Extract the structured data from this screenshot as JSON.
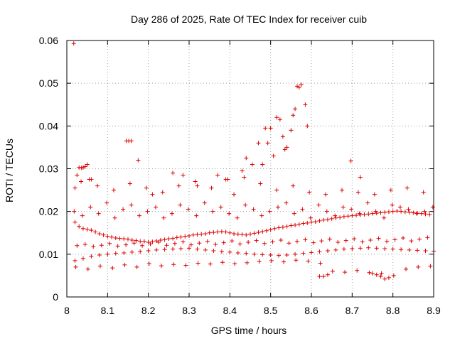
{
  "chart_data": {
    "type": "scatter",
    "title": "Day 286 of 2025, Rate Of TEC Index for receiver cuib",
    "xlabel": "GPS time / hours",
    "ylabel": "ROTI / TECUs",
    "xlim": [
      8.0,
      8.9
    ],
    "ylim": [
      0.0,
      0.06
    ],
    "x_ticks": [
      "8",
      "8.1",
      "8.2",
      "8.3",
      "8.4",
      "8.5",
      "8.6",
      "8.7",
      "8.8",
      "8.9"
    ],
    "y_ticks": [
      "0",
      "0.01",
      "0.02",
      "0.03",
      "0.04",
      "0.05",
      "0.06"
    ],
    "grid": true,
    "marker": "+",
    "color": "#dd0000",
    "series": [
      {
        "name": "ROTI",
        "x": [
          8.017,
          8.02,
          8.025,
          8.03,
          8.036,
          8.04,
          8.045,
          8.05,
          8.055,
          8.06,
          8.02,
          8.03,
          8.04,
          8.05,
          8.06,
          8.07,
          8.08,
          8.09,
          8.1,
          8.11,
          8.12,
          8.13,
          8.14,
          8.15,
          8.16,
          8.17,
          8.18,
          8.19,
          8.2,
          8.21,
          8.22,
          8.23,
          8.24,
          8.25,
          8.26,
          8.27,
          8.28,
          8.29,
          8.3,
          8.31,
          8.32,
          8.33,
          8.34,
          8.35,
          8.36,
          8.37,
          8.38,
          8.39,
          8.4,
          8.41,
          8.42,
          8.43,
          8.44,
          8.45,
          8.46,
          8.47,
          8.48,
          8.49,
          8.5,
          8.51,
          8.52,
          8.53,
          8.54,
          8.55,
          8.56,
          8.57,
          8.58,
          8.59,
          8.6,
          8.61,
          8.62,
          8.63,
          8.64,
          8.65,
          8.66,
          8.67,
          8.68,
          8.69,
          8.7,
          8.71,
          8.72,
          8.73,
          8.74,
          8.75,
          8.76,
          8.77,
          8.78,
          8.79,
          8.8,
          8.81,
          8.82,
          8.83,
          8.84,
          8.85,
          8.86,
          8.87,
          8.88,
          8.89,
          8.02,
          8.04,
          8.06,
          8.08,
          8.1,
          8.12,
          8.14,
          8.16,
          8.18,
          8.2,
          8.22,
          8.24,
          8.26,
          8.28,
          8.3,
          8.32,
          8.34,
          8.36,
          8.38,
          8.4,
          8.42,
          8.44,
          8.46,
          8.48,
          8.5,
          8.52,
          8.54,
          8.56,
          8.58,
          8.6,
          8.62,
          8.64,
          8.66,
          8.68,
          8.7,
          8.72,
          8.74,
          8.76,
          8.78,
          8.8,
          8.82,
          8.84,
          8.86,
          8.88,
          8.9,
          8.025,
          8.045,
          8.065,
          8.085,
          8.105,
          8.125,
          8.145,
          8.165,
          8.185,
          8.205,
          8.225,
          8.245,
          8.265,
          8.285,
          8.305,
          8.325,
          8.345,
          8.365,
          8.385,
          8.405,
          8.425,
          8.445,
          8.465,
          8.485,
          8.505,
          8.525,
          8.545,
          8.565,
          8.585,
          8.605,
          8.625,
          8.645,
          8.665,
          8.685,
          8.705,
          8.725,
          8.745,
          8.765,
          8.785,
          8.805,
          8.825,
          8.845,
          8.865,
          8.885,
          8.018,
          8.038,
          8.058,
          8.078,
          8.098,
          8.118,
          8.138,
          8.158,
          8.178,
          8.198,
          8.218,
          8.238,
          8.258,
          8.278,
          8.298,
          8.318,
          8.338,
          8.358,
          8.378,
          8.398,
          8.418,
          8.438,
          8.458,
          8.478,
          8.498,
          8.518,
          8.538,
          8.558,
          8.578,
          8.598,
          8.618,
          8.638,
          8.658,
          8.678,
          8.698,
          8.718,
          8.738,
          8.758,
          8.778,
          8.798,
          8.818,
          8.838,
          8.858,
          8.878,
          8.898,
          8.022,
          8.052,
          8.082,
          8.112,
          8.142,
          8.172,
          8.202,
          8.232,
          8.262,
          8.292,
          8.322,
          8.352,
          8.382,
          8.412,
          8.442,
          8.472,
          8.502,
          8.532,
          8.562,
          8.592,
          8.622,
          8.652,
          8.682,
          8.712,
          8.742,
          8.772,
          8.802,
          8.832,
          8.862,
          8.892,
          8.035,
          8.075,
          8.115,
          8.155,
          8.195,
          8.235,
          8.275,
          8.315,
          8.355,
          8.395,
          8.435,
          8.475,
          8.515,
          8.555,
          8.595,
          8.635,
          8.675,
          8.715,
          8.755,
          8.795,
          8.835,
          8.875,
          8.146,
          8.152,
          8.158,
          8.175,
          8.21,
          8.26,
          8.285,
          8.32,
          8.37,
          8.39,
          8.41,
          8.43,
          8.44,
          8.455,
          8.47,
          8.48,
          8.487,
          8.493,
          8.5,
          8.507,
          8.515,
          8.523,
          8.53,
          8.535,
          8.54,
          8.55,
          8.555,
          8.56,
          8.565,
          8.57,
          8.575,
          8.585,
          8.59,
          8.697,
          8.72,
          8.62,
          8.63,
          8.64,
          8.75,
          8.76,
          8.77,
          8.78,
          8.79
        ],
        "y": [
          0.0593,
          0.0255,
          0.0285,
          0.0303,
          0.0302,
          0.0303,
          0.0305,
          0.031,
          0.0275,
          0.0275,
          0.0175,
          0.0165,
          0.016,
          0.0158,
          0.0156,
          0.0152,
          0.0148,
          0.0145,
          0.0142,
          0.014,
          0.0138,
          0.0137,
          0.0136,
          0.0135,
          0.0133,
          0.0132,
          0.013,
          0.013,
          0.0128,
          0.0129,
          0.0131,
          0.0133,
          0.0134,
          0.0136,
          0.0137,
          0.0139,
          0.014,
          0.0142,
          0.0143,
          0.0145,
          0.0146,
          0.0147,
          0.0148,
          0.015,
          0.0151,
          0.0152,
          0.0153,
          0.0152,
          0.015,
          0.0148,
          0.0147,
          0.0146,
          0.0145,
          0.0147,
          0.0149,
          0.0151,
          0.0153,
          0.0155,
          0.0157,
          0.016,
          0.0162,
          0.0163,
          0.0165,
          0.0167,
          0.0168,
          0.017,
          0.0172,
          0.0173,
          0.0175,
          0.0176,
          0.0178,
          0.018,
          0.0181,
          0.0183,
          0.0185,
          0.0186,
          0.0188,
          0.0189,
          0.019,
          0.0191,
          0.0192,
          0.0193,
          0.0194,
          0.0195,
          0.0196,
          0.0197,
          0.0198,
          0.0199,
          0.02,
          0.0201,
          0.02,
          0.0199,
          0.0198,
          0.0197,
          0.0196,
          0.0195,
          0.0194,
          0.0193,
          0.0085,
          0.009,
          0.0095,
          0.0098,
          0.01,
          0.0102,
          0.0103,
          0.0105,
          0.0106,
          0.0108,
          0.011,
          0.0111,
          0.0112,
          0.0113,
          0.0114,
          0.0112,
          0.011,
          0.0108,
          0.0106,
          0.0105,
          0.0103,
          0.0102,
          0.01,
          0.0099,
          0.0098,
          0.0097,
          0.0098,
          0.01,
          0.0102,
          0.0104,
          0.0106,
          0.0108,
          0.011,
          0.0112,
          0.0113,
          0.0114,
          0.0115,
          0.0114,
          0.0113,
          0.0112,
          0.0111,
          0.011,
          0.0109,
          0.0108,
          0.0107,
          0.012,
          0.0123,
          0.0118,
          0.0121,
          0.0125,
          0.0119,
          0.0122,
          0.0126,
          0.012,
          0.0124,
          0.0128,
          0.0121,
          0.0125,
          0.0129,
          0.0122,
          0.0126,
          0.013,
          0.0123,
          0.0127,
          0.0131,
          0.0124,
          0.0128,
          0.0132,
          0.0125,
          0.0129,
          0.0133,
          0.0126,
          0.013,
          0.0134,
          0.0127,
          0.0131,
          0.0135,
          0.0128,
          0.0132,
          0.0136,
          0.0129,
          0.0133,
          0.0137,
          0.013,
          0.0134,
          0.0138,
          0.0131,
          0.0135,
          0.0139,
          0.02,
          0.019,
          0.021,
          0.0195,
          0.022,
          0.0185,
          0.0205,
          0.0215,
          0.019,
          0.02,
          0.021,
          0.0185,
          0.0195,
          0.0215,
          0.0205,
          0.019,
          0.022,
          0.02,
          0.021,
          0.0195,
          0.0185,
          0.0215,
          0.0205,
          0.019,
          0.02,
          0.021,
          0.022,
          0.0195,
          0.0205,
          0.0185,
          0.0215,
          0.02,
          0.019,
          0.021,
          0.0205,
          0.0195,
          0.022,
          0.02,
          0.0185,
          0.0215,
          0.021,
          0.0205,
          0.0195,
          0.02,
          0.021,
          0.007,
          0.0065,
          0.0072,
          0.0068,
          0.0075,
          0.007,
          0.0078,
          0.0073,
          0.0076,
          0.0074,
          0.0079,
          0.0077,
          0.0081,
          0.0078,
          0.008,
          0.0083,
          0.0085,
          0.0082,
          0.0086,
          0.0084,
          0.0079,
          0.006,
          0.0058,
          0.0062,
          0.0057,
          0.0055,
          0.005,
          0.0065,
          0.007,
          0.0072,
          0.027,
          0.026,
          0.025,
          0.0265,
          0.0255,
          0.0245,
          0.026,
          0.027,
          0.0255,
          0.0275,
          0.028,
          0.0265,
          0.025,
          0.026,
          0.0245,
          0.024,
          0.025,
          0.0245,
          0.024,
          0.025,
          0.0255,
          0.0245,
          0.0365,
          0.0365,
          0.0365,
          0.032,
          0.024,
          0.029,
          0.0285,
          0.026,
          0.0285,
          0.0275,
          0.024,
          0.0295,
          0.0325,
          0.031,
          0.036,
          0.031,
          0.0395,
          0.036,
          0.0395,
          0.033,
          0.042,
          0.0415,
          0.0375,
          0.0345,
          0.035,
          0.039,
          0.0425,
          0.044,
          0.0493,
          0.049,
          0.0497,
          0.045,
          0.04,
          0.0318,
          0.028,
          0.0048,
          0.0048,
          0.0052,
          0.0055,
          0.0052,
          0.0048,
          0.0042,
          0.0045
        ]
      }
    ]
  }
}
